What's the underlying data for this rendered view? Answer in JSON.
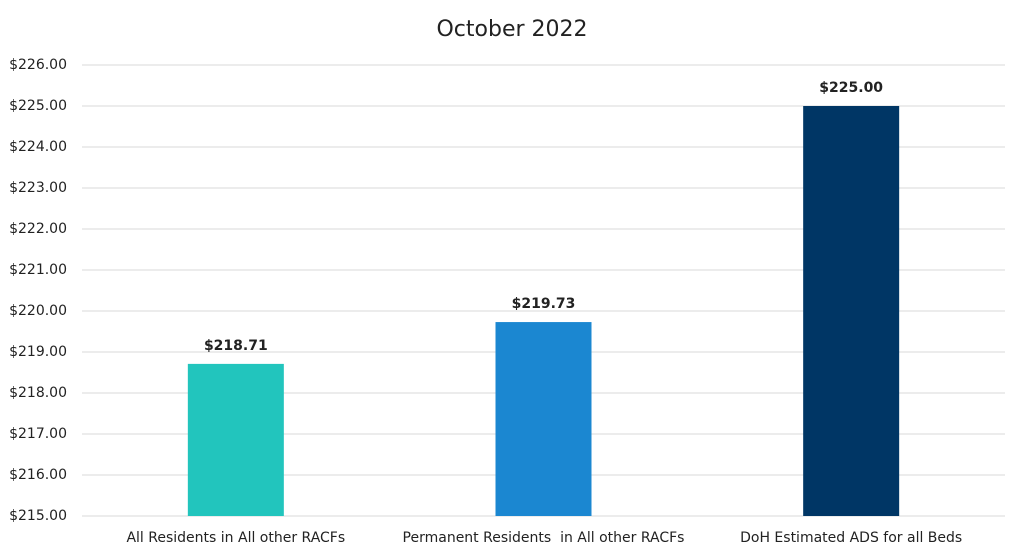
{
  "chart_data": {
    "type": "bar",
    "title": "October 2022",
    "categories": [
      "All Residents in All other RACFs",
      "Permanent Residents  in All other RACFs",
      "DoH Estimated ADS for all Beds"
    ],
    "values": [
      218.71,
      219.73,
      225.0
    ],
    "value_labels": [
      "$218.71",
      "$219.73",
      "$225.00"
    ],
    "colors": [
      "#22c5bd",
      "#1b87d1",
      "#003665"
    ],
    "ylim": [
      215,
      226
    ],
    "yticks": [
      {
        "value": 215,
        "label": "$215.00"
      },
      {
        "value": 216,
        "label": "$216.00"
      },
      {
        "value": 217,
        "label": "$217.00"
      },
      {
        "value": 218,
        "label": "$218.00"
      },
      {
        "value": 219,
        "label": "$219.00"
      },
      {
        "value": 220,
        "label": "$220.00"
      },
      {
        "value": 221,
        "label": "$221.00"
      },
      {
        "value": 222,
        "label": "$222.00"
      },
      {
        "value": 223,
        "label": "$223.00"
      },
      {
        "value": 224,
        "label": "$224.00"
      },
      {
        "value": 225,
        "label": "$225.00"
      },
      {
        "value": 226,
        "label": "$226.00"
      }
    ],
    "grid": true
  }
}
